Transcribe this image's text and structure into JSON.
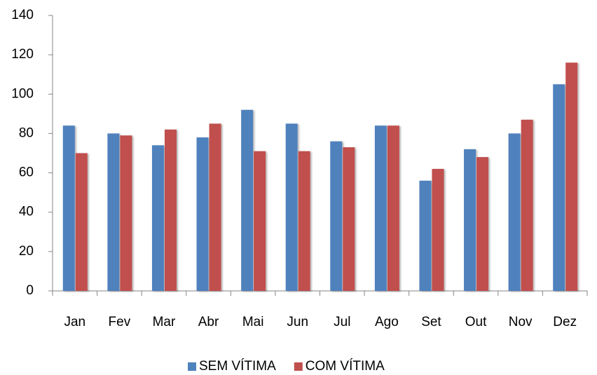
{
  "chart_data": {
    "type": "bar",
    "categories": [
      "Jan",
      "Fev",
      "Mar",
      "Abr",
      "Mai",
      "Jun",
      "Jul",
      "Ago",
      "Set",
      "Out",
      "Nov",
      "Dez"
    ],
    "series": [
      {
        "name": "SEM VÍTIMA",
        "color": "#4f81bd",
        "values": [
          84,
          80,
          74,
          78,
          92,
          85,
          76,
          84,
          56,
          72,
          80,
          105
        ]
      },
      {
        "name": "COM VÍTIMA",
        "color": "#c0504d",
        "values": [
          70,
          79,
          82,
          85,
          71,
          71,
          73,
          84,
          62,
          68,
          87,
          116
        ]
      }
    ],
    "ylim": [
      0,
      140
    ],
    "yticks": [
      0,
      20,
      40,
      60,
      80,
      100,
      120,
      140
    ],
    "grid": false,
    "legend": "bottom"
  }
}
